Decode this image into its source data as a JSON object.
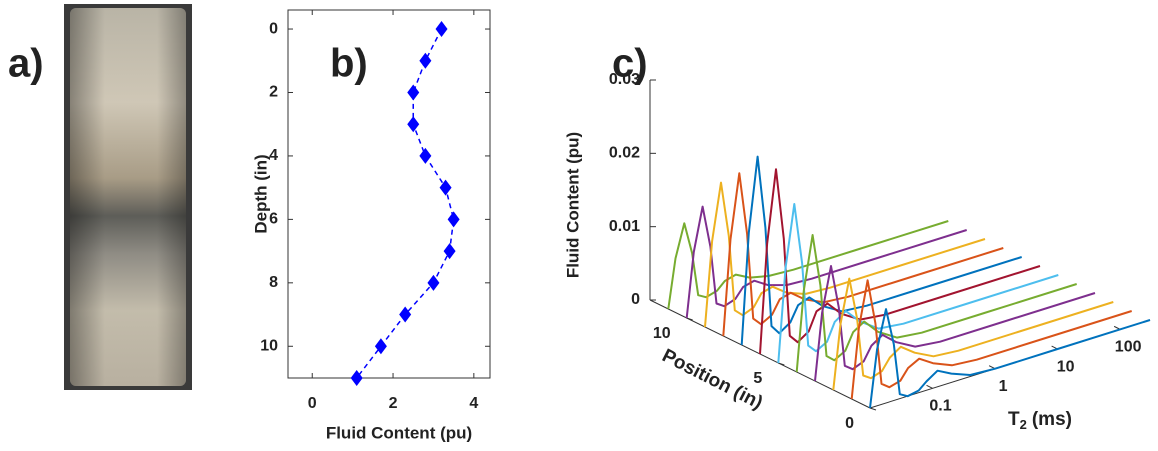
{
  "panel_labels": [
    "a)",
    "b)",
    "c)"
  ],
  "chart_data": [
    {
      "type": "line",
      "x_label": "Fluid Content (pu)",
      "y_label": "Depth (in)",
      "color": "#0000ff",
      "marker": "diamond",
      "line_style": "dashed",
      "y": [
        0,
        1,
        2,
        3,
        4,
        5,
        6,
        7,
        8,
        9,
        10,
        11
      ],
      "values": [
        3.2,
        2.8,
        2.5,
        2.5,
        2.8,
        3.3,
        3.5,
        3.4,
        3.0,
        2.3,
        1.7,
        1.1
      ],
      "xlim": [
        -0.6,
        4.4
      ],
      "xticks": [
        0,
        2,
        4
      ],
      "ylim": [
        -0.6,
        11
      ],
      "yticks": [
        0,
        2,
        4,
        6,
        8,
        10
      ],
      "y_reversed": true
    },
    {
      "type": "waterfall3d",
      "z_label": "Fluid Content (pu)",
      "position_label": "Position (in)",
      "t2_label": {
        "main": "T",
        "sub": "2",
        "unit": "(ms)"
      },
      "x": [
        0.01,
        0.013,
        0.018,
        0.024,
        0.03,
        0.04,
        0.06,
        0.08,
        0.12,
        0.2,
        0.4,
        1,
        10,
        300
      ],
      "xlim": [
        0.01,
        300
      ],
      "xticks": [
        0.1,
        1,
        10,
        100
      ],
      "xlog": true,
      "poslim": [
        0,
        12
      ],
      "posticks": [
        0,
        5,
        10
      ],
      "zlim": [
        0,
        0.03
      ],
      "zticks": [
        0,
        0.01,
        0.02,
        0.03
      ],
      "series": [
        {
          "position": 0,
          "color": "#0072bd",
          "values": [
            0,
            0.0077,
            0.0128,
            0.0077,
            0.0006,
            0,
            0.0003,
            0.0012,
            0.0022,
            0.0012,
            0.0002,
            0,
            0,
            0
          ]
        },
        {
          "position": 1,
          "color": "#d95319",
          "values": [
            0,
            0.0093,
            0.0155,
            0.0093,
            0.0008,
            0,
            0.0004,
            0.0018,
            0.0026,
            0.0014,
            0.0003,
            0,
            0,
            0
          ]
        },
        {
          "position": 2,
          "color": "#edb120",
          "values": [
            0,
            0.0087,
            0.0145,
            0.0087,
            0.0007,
            0,
            0.0005,
            0.002,
            0.003,
            0.0016,
            0.0003,
            0,
            0,
            0
          ]
        },
        {
          "position": 3,
          "color": "#7e2f8e",
          "values": [
            0,
            0.009,
            0.015,
            0.009,
            0.0008,
            0,
            0.0006,
            0.0024,
            0.0034,
            0.0018,
            0.0004,
            0,
            0,
            0
          ]
        },
        {
          "position": 4,
          "color": "#77ac30",
          "values": [
            0,
            0.0108,
            0.018,
            0.0108,
            0.0009,
            0,
            0.0008,
            0.003,
            0.004,
            0.002,
            0.0004,
            0,
            0,
            0
          ]
        },
        {
          "position": 5,
          "color": "#4dbeee",
          "values": [
            0,
            0.0126,
            0.021,
            0.0126,
            0.0011,
            0,
            0.0008,
            0.0032,
            0.0042,
            0.0022,
            0.0004,
            0,
            0,
            0
          ]
        },
        {
          "position": 6,
          "color": "#a2142f",
          "values": [
            0,
            0.0147,
            0.0245,
            0.0147,
            0.0012,
            0,
            0.001,
            0.0034,
            0.004,
            0.002,
            0.0004,
            0,
            0,
            0
          ]
        },
        {
          "position": 7,
          "color": "#0072bd",
          "values": [
            0,
            0.015,
            0.025,
            0.015,
            0.0013,
            0,
            0.001,
            0.003,
            0.0036,
            0.0018,
            0.0003,
            0,
            0,
            0
          ]
        },
        {
          "position": 8,
          "color": "#d95319",
          "values": [
            0,
            0.0129,
            0.0215,
            0.0129,
            0.0011,
            0,
            0.0008,
            0.0026,
            0.003,
            0.0015,
            0.0003,
            0,
            0,
            0
          ]
        },
        {
          "position": 9,
          "color": "#edb120",
          "values": [
            0,
            0.0114,
            0.019,
            0.0114,
            0.001,
            0,
            0.0006,
            0.0022,
            0.0026,
            0.0012,
            0.0002,
            0,
            0,
            0
          ]
        },
        {
          "position": 10,
          "color": "#7e2f8e",
          "values": [
            0,
            0.0087,
            0.0145,
            0.0087,
            0.0007,
            0,
            0.0005,
            0.0018,
            0.0022,
            0.001,
            0.0002,
            0,
            0,
            0
          ]
        },
        {
          "position": 11,
          "color": "#77ac30",
          "values": [
            0,
            0.0066,
            0.011,
            0.0066,
            0.0006,
            0,
            0.0004,
            0.0014,
            0.0018,
            0.0008,
            0.0002,
            0,
            0,
            0
          ]
        }
      ]
    }
  ]
}
